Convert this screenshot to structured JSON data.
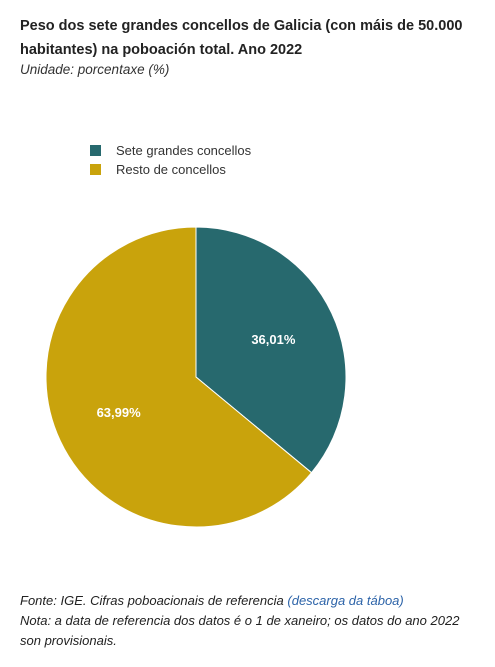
{
  "header": {
    "title": "Peso dos sete grandes concellos de Galicia (con máis de 50.000 habitantes) na poboación total. Ano  2022",
    "subtitle": "Unidade: porcentaxe (%)"
  },
  "chart_data": {
    "type": "pie",
    "title": "Peso dos sete grandes concellos de Galicia (con máis de 50.000 habitantes) na poboación total. Ano  2022",
    "unit": "%",
    "legend_position": "top-left",
    "slices": [
      {
        "name": "Sete grandes concellos",
        "value": 36.01,
        "label": "36,01%",
        "color": "#27696e"
      },
      {
        "name": "Resto de concellos",
        "value": 63.99,
        "label": "63,99%",
        "color": "#c9a30c"
      }
    ]
  },
  "footer": {
    "source_text": "Fonte: IGE. Cifras poboacionais de referencia",
    "source_link": "(descarga da táboa)",
    "note": "Nota: a data de referencia dos datos é o 1 de xaneiro; os datos do ano 2022 son provisionais."
  }
}
